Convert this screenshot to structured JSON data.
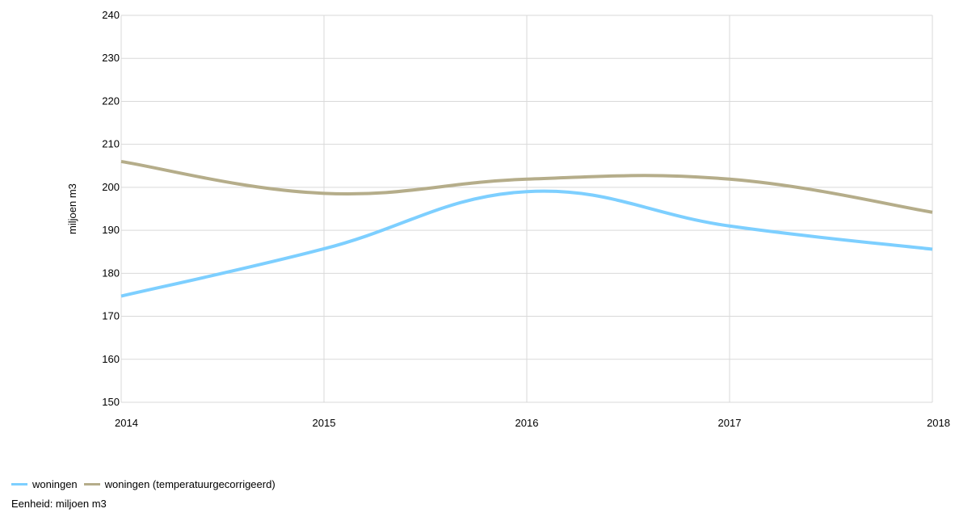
{
  "chart_data": {
    "type": "line",
    "x": [
      2014,
      2015,
      2016,
      2017,
      2018
    ],
    "ylabel": "miljoen m3",
    "ylim": [
      150,
      240
    ],
    "yticks": [
      150,
      160,
      170,
      180,
      190,
      200,
      210,
      220,
      230,
      240
    ],
    "grid": true,
    "legend_position": "bottom-left",
    "series": [
      {
        "name": "woningen",
        "color": "#7dcfff",
        "values": [
          174.7,
          185.7,
          199.0,
          191.0,
          185.6
        ]
      },
      {
        "name": "woningen (temperatuurgecorrigeerd)",
        "color": "#b5ad8a",
        "values": [
          206.0,
          198.6,
          201.9,
          201.9,
          194.2
        ]
      }
    ]
  },
  "unit_note": "Eenheid: miljoen m3"
}
